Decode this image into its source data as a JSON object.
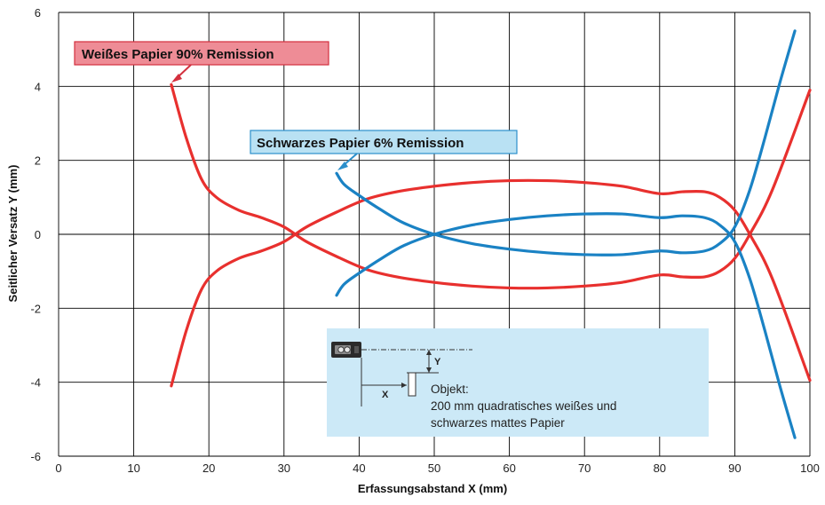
{
  "chart_data": {
    "type": "line",
    "xlabel": "Erfassungsabstand X (mm)",
    "ylabel": "Seitlicher Versatz Y (mm)",
    "xlim": [
      0,
      100
    ],
    "ylim": [
      -6,
      6
    ],
    "x_ticks": [
      0,
      10,
      20,
      30,
      40,
      50,
      60,
      70,
      80,
      90,
      100
    ],
    "y_ticks": [
      -6,
      -4,
      -2,
      0,
      2,
      4,
      6
    ],
    "grid": true,
    "series": [
      {
        "id": "white_upper",
        "color": "#e8302e",
        "x": [
          15,
          17,
          19,
          21,
          24,
          27,
          30,
          33,
          37,
          41,
          45,
          50,
          55,
          60,
          65,
          70,
          75,
          80,
          83,
          86,
          88,
          90,
          92,
          95,
          100
        ],
        "y": [
          4.05,
          2.6,
          1.5,
          1.0,
          0.65,
          0.45,
          0.2,
          -0.2,
          -0.6,
          -0.95,
          -1.15,
          -1.3,
          -1.4,
          -1.45,
          -1.45,
          -1.4,
          -1.3,
          -1.1,
          -1.15,
          -1.15,
          -1.0,
          -0.65,
          0.0,
          1.2,
          3.9
        ]
      },
      {
        "id": "white_lower",
        "color": "#e8302e",
        "x": [
          15,
          17,
          19,
          21,
          24,
          27,
          30,
          33,
          37,
          41,
          45,
          50,
          55,
          60,
          65,
          70,
          75,
          80,
          83,
          86,
          88,
          90,
          92,
          95,
          100
        ],
        "y": [
          -4.1,
          -2.6,
          -1.5,
          -1.0,
          -0.65,
          -0.45,
          -0.2,
          0.2,
          0.6,
          0.95,
          1.15,
          1.3,
          1.4,
          1.45,
          1.45,
          1.4,
          1.3,
          1.1,
          1.15,
          1.15,
          1.0,
          0.65,
          0.0,
          -1.2,
          -3.95
        ]
      },
      {
        "id": "black_upper",
        "color": "#1a82c4",
        "x": [
          37,
          38,
          40,
          43,
          46,
          50,
          55,
          60,
          65,
          70,
          75,
          80,
          83,
          86,
          88,
          90,
          92,
          94,
          96,
          98
        ],
        "y": [
          1.65,
          1.35,
          1.05,
          0.65,
          0.3,
          0.0,
          -0.25,
          -0.4,
          -0.5,
          -0.55,
          -0.55,
          -0.45,
          -0.5,
          -0.45,
          -0.25,
          0.2,
          1.2,
          2.6,
          4.1,
          5.5
        ]
      },
      {
        "id": "black_lower",
        "color": "#1a82c4",
        "x": [
          37,
          38,
          40,
          43,
          46,
          50,
          55,
          60,
          65,
          70,
          75,
          80,
          83,
          86,
          88,
          90,
          92,
          94,
          96,
          98
        ],
        "y": [
          -1.65,
          -1.35,
          -1.05,
          -0.65,
          -0.3,
          0.0,
          0.25,
          0.4,
          0.5,
          0.55,
          0.55,
          0.45,
          0.5,
          0.45,
          0.25,
          -0.2,
          -1.2,
          -2.6,
          -4.1,
          -5.5
        ]
      }
    ],
    "annotations": [
      {
        "text": "Weißes Papier 90% Remission",
        "bg": "#ee8c96",
        "border": "#d3303e",
        "points_to": [
          15,
          4.05
        ]
      },
      {
        "text": "Schwarzes Papier 6% Remission",
        "bg": "#b9e1f3",
        "border": "#2b8fcb",
        "points_to": [
          37,
          1.65
        ]
      }
    ],
    "inset": {
      "bg": "#cce9f7",
      "label_y": "Y",
      "label_x": "X",
      "object_text": [
        "Objekt:",
        "200 mm quadratisches weißes und",
        "schwarzes mattes Papier"
      ]
    }
  }
}
